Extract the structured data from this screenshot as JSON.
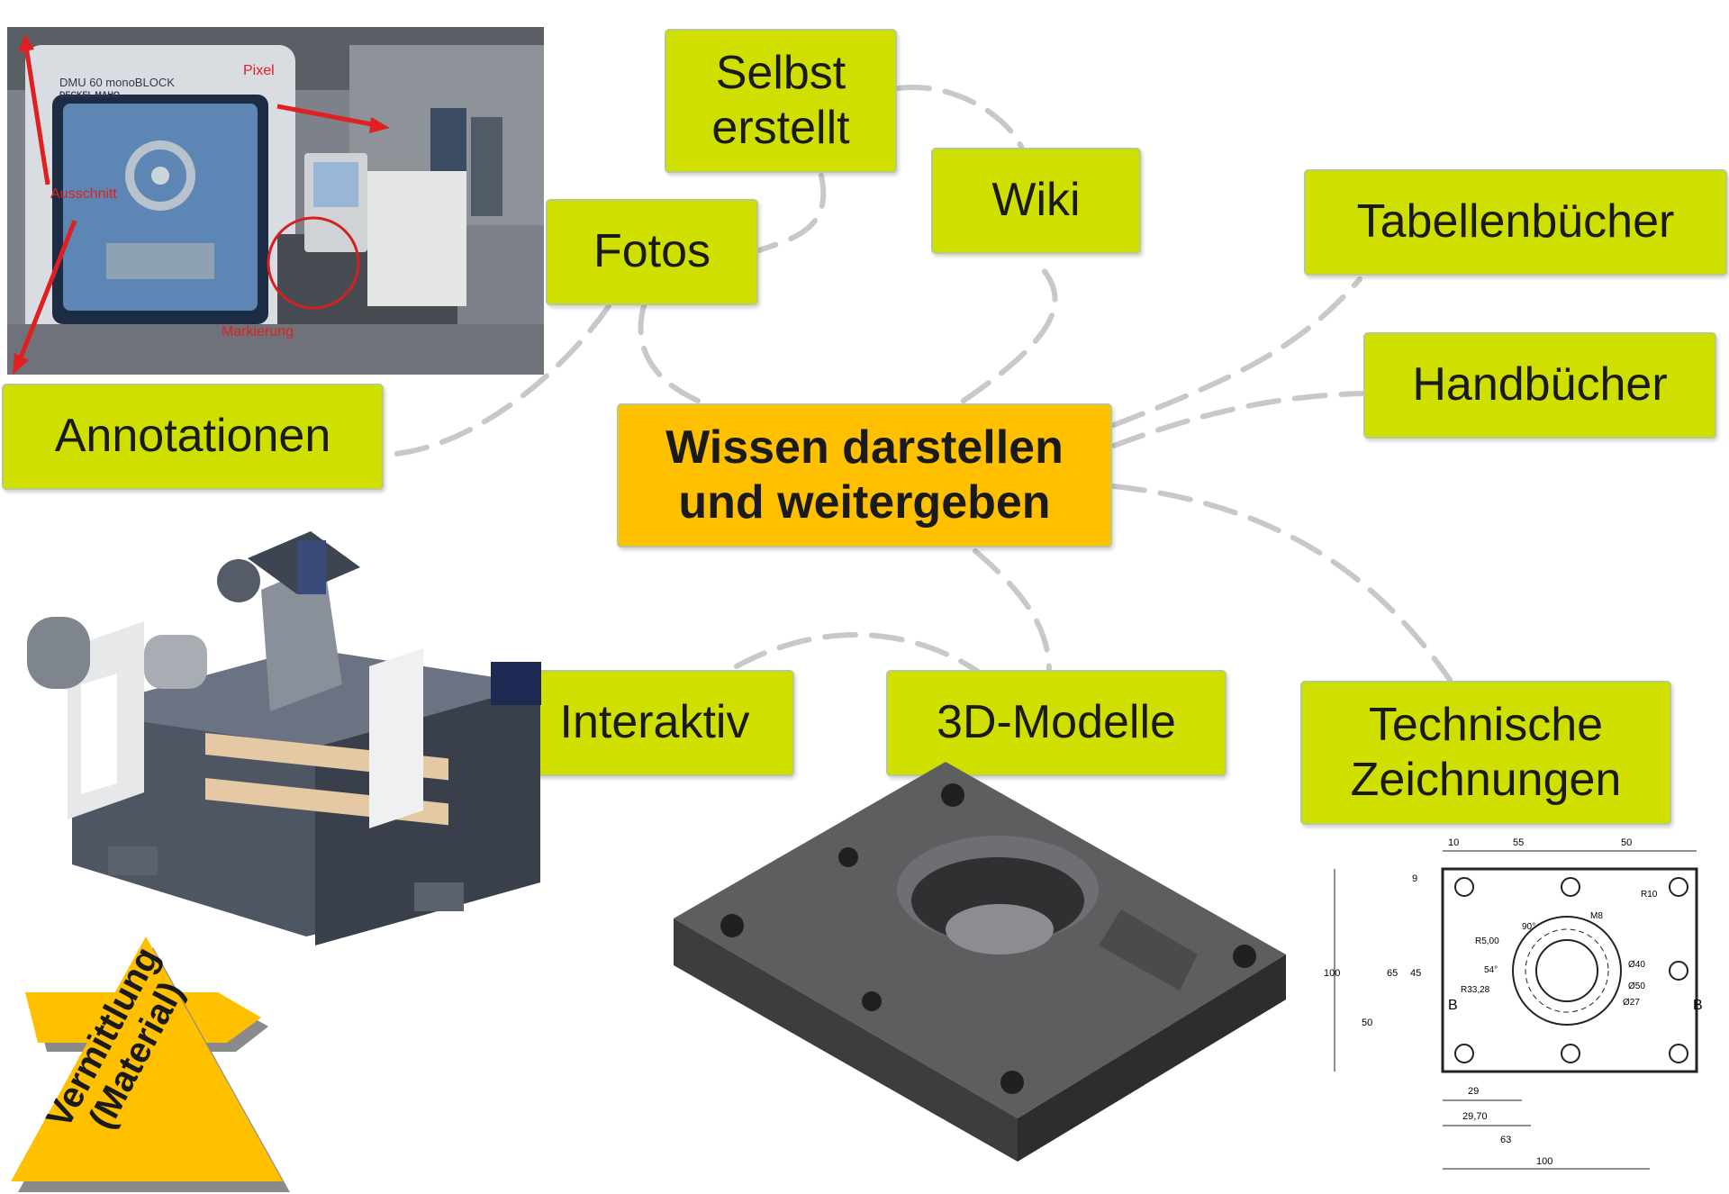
{
  "center": {
    "label": "Wissen darstellen\nund weitergeben"
  },
  "nodes": {
    "selbst": "Selbst\nerstellt",
    "wiki": "Wiki",
    "fotos": "Fotos",
    "tabellen": "Tabellenbücher",
    "handbuecher": "Handbücher",
    "annotationen": "Annotationen",
    "interaktiv": "Interaktiv",
    "modelle": "3D-Modelle",
    "technische": "Technische\nZeichnungen"
  },
  "photo": {
    "machine_brand": "DMU 60 monoBLOCK",
    "machine_maker": "DECKEL MAHO",
    "label_pixel": "Pixel",
    "label_ausschnitt": "Ausschnitt",
    "label_markierung": "Markierung"
  },
  "drawing": {
    "dims_top": [
      "10",
      "55",
      "50"
    ],
    "dims_left": [
      "9",
      "100",
      "65",
      "45",
      "50"
    ],
    "dims_bottom": [
      "29",
      "29,70",
      "63",
      "100"
    ],
    "annotations": [
      "R10",
      "M8",
      "90°",
      "R5,00",
      "54°",
      "R33,28",
      "Ø40",
      "Ø50",
      "Ø27"
    ],
    "section_marks": [
      "B",
      "B"
    ]
  },
  "badge": {
    "label": "Vermittlung\n(Material)"
  },
  "colors": {
    "node": "#cfe000",
    "center": "#ffc000",
    "connector": "#c8c8c8",
    "badge": "#ffc000"
  }
}
